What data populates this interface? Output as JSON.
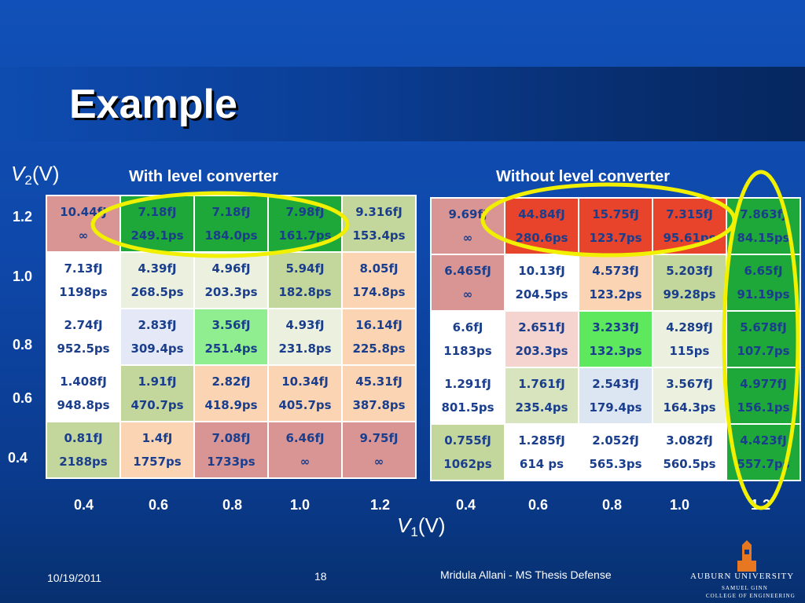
{
  "title": "Example",
  "v2_label": {
    "sym": "V",
    "sub": "2",
    "unit": "(V)"
  },
  "v1_label": {
    "sym": "V",
    "sub": "1",
    "unit": "(V)"
  },
  "captions": {
    "left": "With level converter",
    "right": "Without level converter"
  },
  "row_ticks": [
    "1.2",
    "1.0",
    "0.8",
    "0.6",
    "0.4"
  ],
  "col_ticks_left": [
    "0.4",
    "0.6",
    "0.8",
    "1.0",
    "1.2"
  ],
  "col_ticks_right": [
    "0.4",
    "0.6",
    "0.8",
    "1.0",
    "1.2"
  ],
  "left_table": [
    [
      {
        "e": "10.44fJ",
        "d": "∞",
        "c": "c-rose"
      },
      {
        "e": "7.18fJ",
        "d": "249.1ps",
        "c": "c-dgreen"
      },
      {
        "e": "7.18fJ",
        "d": "184.0ps",
        "c": "c-dgreen"
      },
      {
        "e": "7.98fJ",
        "d": "161.7ps",
        "c": "c-dgreen"
      },
      {
        "e": "9.316fJ",
        "d": "153.4ps",
        "c": "c-olive"
      }
    ],
    [
      {
        "e": "7.13fJ",
        "d": "1198ps",
        "c": "c-white"
      },
      {
        "e": "4.39fJ",
        "d": "268.5ps",
        "c": "c-cream"
      },
      {
        "e": "4.96fJ",
        "d": "203.3ps",
        "c": "c-cream"
      },
      {
        "e": "5.94fJ",
        "d": "182.8ps",
        "c": "c-olive"
      },
      {
        "e": "8.05fJ",
        "d": "174.8ps",
        "c": "c-peach"
      }
    ],
    [
      {
        "e": "2.74fJ",
        "d": "952.5ps",
        "c": "c-white"
      },
      {
        "e": "2.83fJ",
        "d": "309.4ps",
        "c": "c-lav"
      },
      {
        "e": "3.56fJ",
        "d": "251.4ps",
        "c": "c-lgreen"
      },
      {
        "e": "4.93fJ",
        "d": "231.8ps",
        "c": "c-cream"
      },
      {
        "e": "16.14fJ",
        "d": "225.8ps",
        "c": "c-peach"
      }
    ],
    [
      {
        "e": "1.408fJ",
        "d": "948.8ps",
        "c": "c-white"
      },
      {
        "e": "1.91fJ",
        "d": "470.7ps",
        "c": "c-olive"
      },
      {
        "e": "2.82fJ",
        "d": "418.9ps",
        "c": "c-peach"
      },
      {
        "e": "10.34fJ",
        "d": "405.7ps",
        "c": "c-peach"
      },
      {
        "e": "45.31fJ",
        "d": "387.8ps",
        "c": "c-peach"
      }
    ],
    [
      {
        "e": "0.81fJ",
        "d": "2188ps",
        "c": "c-olive"
      },
      {
        "e": "1.4fJ",
        "d": "1757ps",
        "c": "c-peach"
      },
      {
        "e": "7.08fJ",
        "d": "1733ps",
        "c": "c-rose"
      },
      {
        "e": "6.46fJ",
        "d": "∞",
        "c": "c-rose"
      },
      {
        "e": "9.75fJ",
        "d": "∞",
        "c": "c-rose"
      }
    ]
  ],
  "right_table": [
    [
      {
        "e": "9.69fJ",
        "d": "∞",
        "c": "c-rose"
      },
      {
        "e": "44.84fJ",
        "d": "280.6ps",
        "c": "c-red"
      },
      {
        "e": "15.75fJ",
        "d": "123.7ps",
        "c": "c-red"
      },
      {
        "e": "7.315fJ",
        "d": "95.61ps",
        "c": "c-red"
      },
      {
        "e": "7.863fJ",
        "d": "84.15ps",
        "c": "c-dgreen"
      }
    ],
    [
      {
        "e": "6.465fJ",
        "d": "∞",
        "c": "c-rose"
      },
      {
        "e": "10.13fJ",
        "d": "204.5ps",
        "c": "c-white"
      },
      {
        "e": "4.573fJ",
        "d": "123.2ps",
        "c": "c-peach"
      },
      {
        "e": "5.203fJ",
        "d": "99.28ps",
        "c": "c-olive"
      },
      {
        "e": "6.65fJ",
        "d": "91.19ps",
        "c": "c-dgreen"
      }
    ],
    [
      {
        "e": "6.6fJ",
        "d": "1183ps",
        "c": "c-white"
      },
      {
        "e": "2.651fJ",
        "d": "203.3ps",
        "c": "c-pink"
      },
      {
        "e": "3.233fJ",
        "d": "132.3ps",
        "c": "c-bright"
      },
      {
        "e": "4.289fJ",
        "d": "115ps",
        "c": "c-cream"
      },
      {
        "e": "5.678fJ",
        "d": "107.7ps",
        "c": "c-dgreen"
      }
    ],
    [
      {
        "e": "1.291fJ",
        "d": "801.5ps",
        "c": "c-white"
      },
      {
        "e": "1.761fJ",
        "d": "235.4ps",
        "c": "c-lgreen2"
      },
      {
        "e": "2.543fJ",
        "d": "179.4ps",
        "c": "c-lblue"
      },
      {
        "e": "3.567fJ",
        "d": "164.3ps",
        "c": "c-cream"
      },
      {
        "e": "4.977fJ",
        "d": "156.1ps",
        "c": "c-dgreen"
      }
    ],
    [
      {
        "e": "0.755fJ",
        "d": "1062ps",
        "c": "c-olive"
      },
      {
        "e": "1.285fJ",
        "d": "614 ps",
        "c": "c-white"
      },
      {
        "e": "2.052fJ",
        "d": "565.3ps",
        "c": "c-white"
      },
      {
        "e": "3.082fJ",
        "d": "560.5ps",
        "c": "c-white"
      },
      {
        "e": "4.423fJ",
        "d": "557.7ps",
        "c": "c-dgreen"
      }
    ]
  ],
  "footer": {
    "date": "10/19/2011",
    "page": "18",
    "author": "Mridula Allani - MS Thesis Defense"
  },
  "logo": {
    "name": "AUBURN UNIVERSITY",
    "sub1": "SAMUEL GINN",
    "sub2": "COLLEGE OF ENGINEERING"
  },
  "highlight_color": "#f0f000"
}
